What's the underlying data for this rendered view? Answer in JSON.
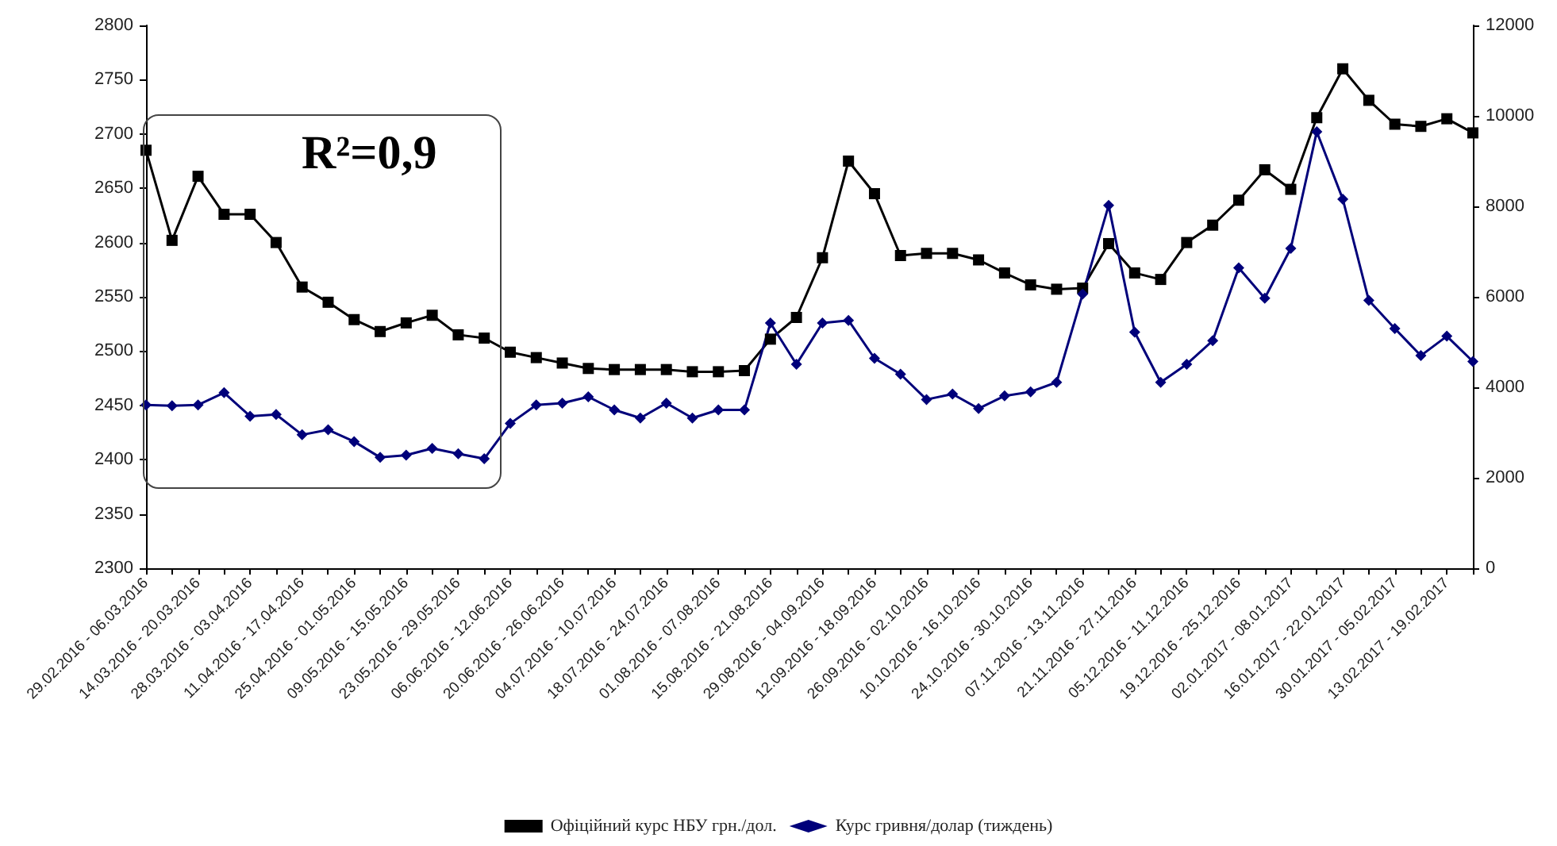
{
  "chart_data": {
    "type": "line",
    "categories": [
      "29.02.2016 - 06.03.2016",
      null,
      "14.03.2016 - 20.03.2016",
      null,
      "28.03.2016 - 03.04.2016",
      null,
      "11.04.2016 - 17.04.2016",
      null,
      "25.04.2016 - 01.05.2016",
      null,
      "09.05.2016 - 15.05.2016",
      null,
      "23.05.2016 - 29.05.2016",
      null,
      "06.06.2016 - 12.06.2016",
      null,
      "20.06.2016 - 26.06.2016",
      null,
      "04.07.2016 - 10.07.2016",
      null,
      "18.07.2016 - 24.07.2016",
      null,
      "01.08.2016 - 07.08.2016",
      null,
      "15.08.2016 - 21.08.2016",
      null,
      "29.08.2016 - 04.09.2016",
      null,
      "12.09.2016 - 18.09.2016",
      null,
      "26.09.2016 - 02.10.2016",
      null,
      "10.10.2016 - 16.10.2016",
      null,
      "24.10.2016 - 30.10.2016",
      null,
      "07.11.2016 - 13.11.2016",
      null,
      "21.11.2016 - 27.11.2016",
      null,
      "05.12.2016 - 11.12.2016",
      null,
      "19.12.2016 - 25.12.2016",
      null,
      "02.01.2017 - 08.01.2017",
      null,
      "16.01.2017 - 22.01.2017",
      null,
      "30.01.2017 - 05.02.2017",
      null,
      "13.02.2017 - 19.02.2017",
      null
    ],
    "series": [
      {
        "name": "Офіційний курс НБУ грн./дол.",
        "color": "#000000",
        "marker": "square",
        "values": [
          2685,
          2602,
          2661,
          2626,
          2626,
          2600,
          2559,
          2545,
          2529,
          2518,
          2526,
          2533,
          2515,
          2512,
          2499,
          2494,
          2489,
          2484,
          2483,
          2483,
          2483,
          2481,
          2481,
          2482,
          2511,
          2531,
          2586,
          2675,
          2645,
          2588,
          2590,
          2590,
          2584,
          2572,
          2561,
          2557,
          2558,
          2599,
          2572,
          2566,
          2600,
          2616,
          2639,
          2667,
          2649,
          2715,
          2760,
          2731,
          2709,
          2707,
          2714,
          2701
        ]
      },
      {
        "name": "Курс гривня/долар (тиждень)",
        "color": "#00007a",
        "marker": "diamond",
        "axis": "y2",
        "values": [
          3610,
          3590,
          3610,
          3880,
          3360,
          3400,
          2950,
          3060,
          2800,
          2450,
          2500,
          2650,
          2530,
          2420,
          3200,
          3610,
          3650,
          3790,
          3500,
          3320,
          3650,
          3320,
          3500,
          3500,
          5420,
          4510,
          5420,
          5480,
          4640,
          4290,
          3730,
          3850,
          3530,
          3810,
          3900,
          4110,
          6060,
          8020,
          5220,
          4110,
          4510,
          5030,
          6640,
          5970,
          7070,
          9650,
          8160,
          5920,
          5300,
          4700,
          5130,
          4570
        ]
      }
    ],
    "ylim": [
      2300,
      2800
    ],
    "yticks": [
      2300,
      2350,
      2400,
      2450,
      2500,
      2550,
      2600,
      2650,
      2700,
      2750,
      2800
    ],
    "y2lim": [
      0,
      12000
    ],
    "y2ticks": [
      0,
      2000,
      4000,
      6000,
      8000,
      10000,
      12000
    ],
    "annotations": [
      "R²=0,9"
    ],
    "legend": "bottom",
    "grid": false
  }
}
